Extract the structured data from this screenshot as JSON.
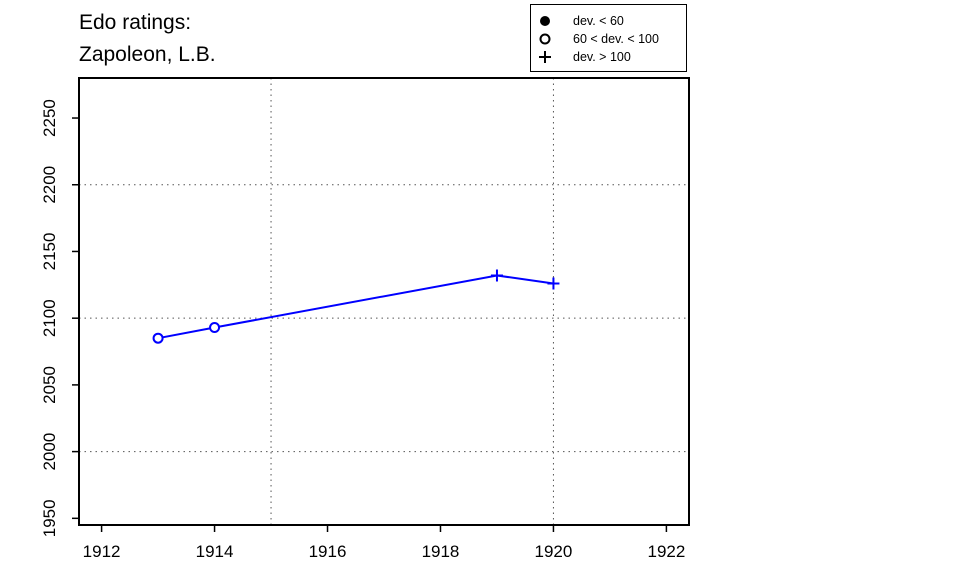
{
  "title": {
    "line1": "Edo ratings:",
    "line2": "Zapoleon, L.B."
  },
  "legend": {
    "items": [
      {
        "symbol": "filled-circle",
        "label": "dev. < 60"
      },
      {
        "symbol": "open-circle",
        "label": "60 < dev. < 100"
      },
      {
        "symbol": "plus",
        "label": "dev. > 100"
      }
    ]
  },
  "colors": {
    "series": "#0000ff",
    "axis": "#000000",
    "grid": "#555555"
  },
  "chart_data": {
    "type": "line",
    "title": "Edo ratings: Zapoleon, L.B.",
    "xlabel": "",
    "ylabel": "",
    "xlim": [
      1911.6,
      1922.4
    ],
    "ylim": [
      1945,
      2280
    ],
    "xticks": [
      1912,
      1914,
      1916,
      1918,
      1920,
      1922
    ],
    "yticks": [
      1950,
      2000,
      2050,
      2100,
      2150,
      2200,
      2250
    ],
    "x_grid": [
      1915,
      1920
    ],
    "y_grid": [
      2000,
      2100,
      2200
    ],
    "grid": true,
    "legend_position": "top-right (above plot)",
    "series": [
      {
        "points": [
          {
            "x": 1913,
            "y": 2085,
            "marker": "open-circle"
          },
          {
            "x": 1914,
            "y": 2093,
            "marker": "open-circle"
          },
          {
            "x": 1919,
            "y": 2132,
            "marker": "plus"
          },
          {
            "x": 1920,
            "y": 2126,
            "marker": "plus"
          }
        ]
      }
    ]
  }
}
